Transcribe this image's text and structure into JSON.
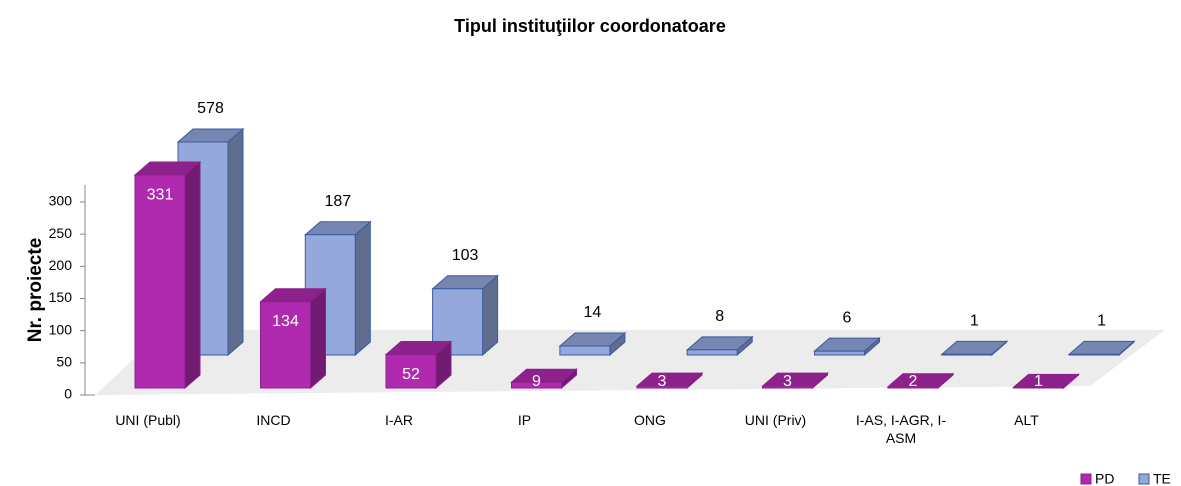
{
  "chart_data": {
    "type": "bar3d",
    "title": "Tipul instituţiilor coordonatoare",
    "y_label": "Nr. proiecte",
    "categories": [
      "UNI (Publ)",
      "INCD",
      "I-AR",
      "IP",
      "ONG",
      "UNI (Priv)",
      "I-AS, I-AGR, I-ASM",
      "ALT"
    ],
    "series": [
      {
        "name": "PD",
        "color": "#b02aaf",
        "values": [
          331,
          134,
          52,
          9,
          3,
          3,
          2,
          1
        ]
      },
      {
        "name": "TE",
        "color": "#95a8dc",
        "values": [
          578,
          187,
          103,
          14,
          8,
          6,
          1,
          1
        ]
      }
    ],
    "ylim": [
      0,
      300
    ],
    "yticks": [
      0,
      50,
      100,
      150,
      200,
      250,
      300
    ],
    "legend": "bottom-right"
  }
}
